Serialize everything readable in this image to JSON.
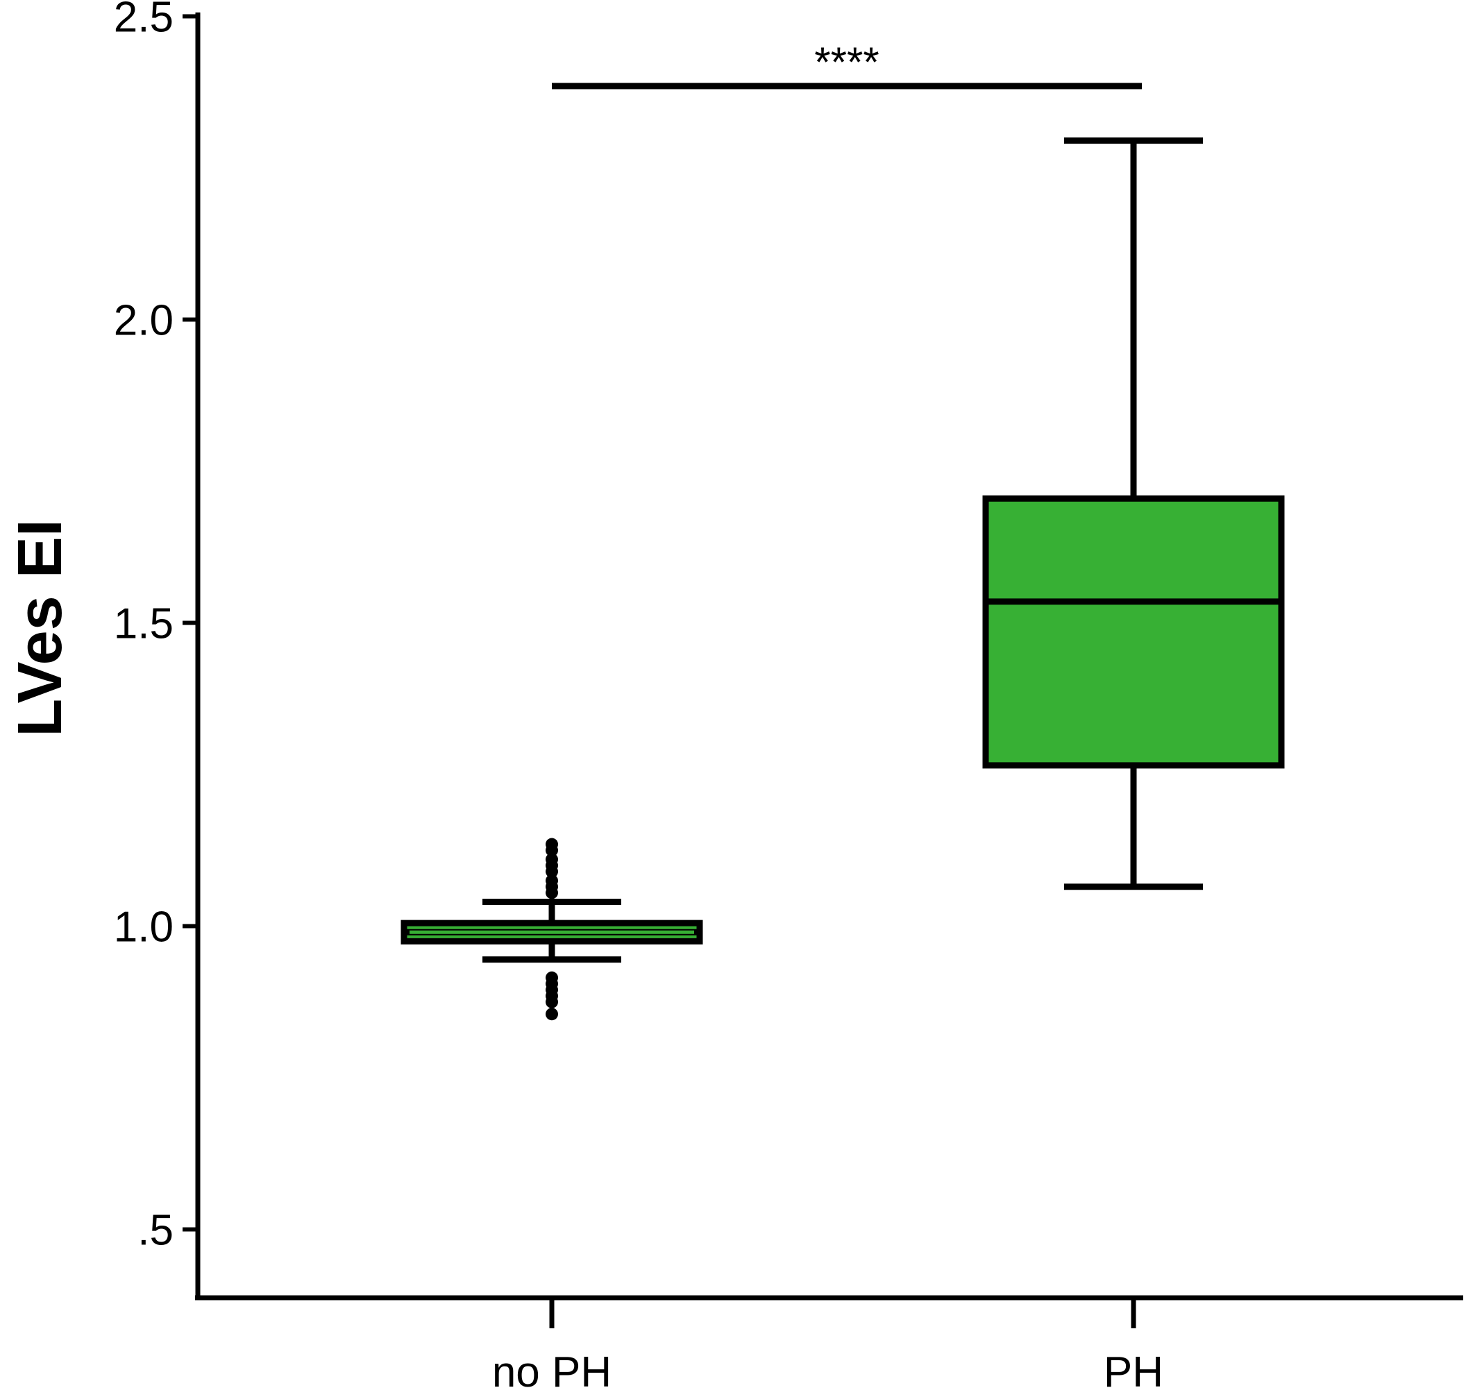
{
  "chart_data": {
    "type": "box",
    "title": "",
    "xlabel": "",
    "ylabel": "LVes EI",
    "ylim": [
      0.39,
      2.52
    ],
    "yticks": [
      {
        "value": 0.5,
        "label": ".5"
      },
      {
        "value": 1.0,
        "label": "1.0"
      },
      {
        "value": 1.5,
        "label": "1.5"
      },
      {
        "value": 2.0,
        "label": "2.0"
      },
      {
        "value": 2.5,
        "label": "2.5"
      }
    ],
    "categories": [
      "no PH",
      "PH"
    ],
    "boxes": [
      {
        "category": "no PH",
        "whisker_low": 0.945,
        "q1": 0.975,
        "median": 0.99,
        "q3": 1.005,
        "whisker_high": 1.04,
        "outliers": [
          0.855,
          0.875,
          0.885,
          0.895,
          0.905,
          0.915,
          1.055,
          1.065,
          1.075,
          1.09,
          1.1,
          1.11,
          1.125,
          1.135
        ]
      },
      {
        "category": "PH",
        "whisker_low": 1.065,
        "q1": 1.265,
        "median": 1.535,
        "q3": 1.705,
        "whisker_high": 2.295,
        "outliers": []
      }
    ],
    "significance": {
      "from": "no PH",
      "to": "PH",
      "label": "****",
      "y": 2.385
    },
    "grid": false,
    "legend": "none",
    "colors": {
      "box_fill": "#37b034",
      "stroke": "#000000"
    }
  }
}
